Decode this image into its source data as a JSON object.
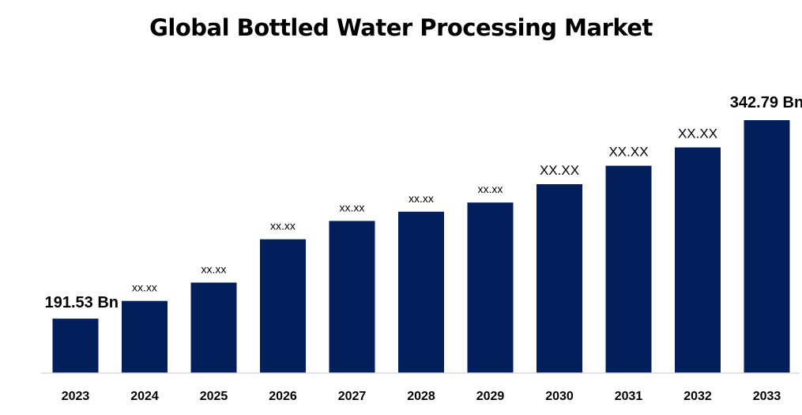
{
  "chart_data": {
    "type": "bar",
    "title": "Global Bottled Water Processing Market",
    "xlabel": "",
    "ylabel": "",
    "categories": [
      "2023",
      "2024",
      "2025",
      "2026",
      "2027",
      "2028",
      "2029",
      "2030",
      "2031",
      "2032",
      "2033"
    ],
    "values": [
      191.53,
      205,
      219,
      252,
      266,
      273,
      280,
      294,
      308,
      322,
      342.79
    ],
    "data_labels": [
      "191.53  Bn",
      "xx.xx",
      "xx.xx",
      "xx.xx",
      "xx.xx",
      "xx.xx",
      "xx.xx",
      "XX.XX",
      "XX.XX",
      "XX.XX",
      "342.79 Bn"
    ],
    "ylim": [
      150,
      350
    ],
    "grid": false,
    "bar_color": "#021f5c"
  }
}
